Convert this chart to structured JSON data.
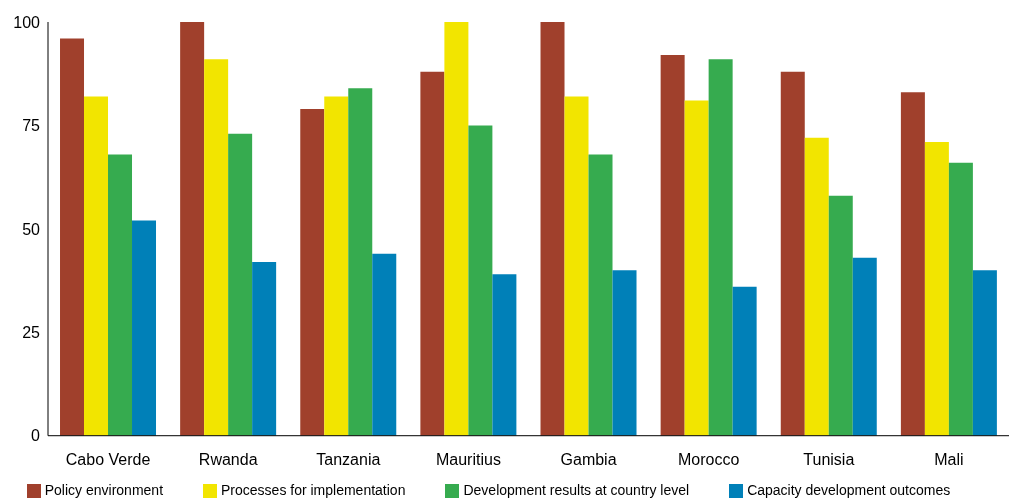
{
  "chart_data": {
    "type": "bar",
    "categories": [
      "Cabo Verde",
      "Rwanda",
      "Tanzania",
      "Mauritius",
      "Gambia",
      "Morocco",
      "Tunisia",
      "Mali"
    ],
    "series": [
      {
        "name": "Policy environment",
        "color": "#a0402c",
        "values": [
          96,
          100,
          79,
          88,
          100,
          92,
          88,
          83
        ]
      },
      {
        "name": "Processes for implementation",
        "color": "#f2e500",
        "values": [
          82,
          91,
          82,
          100,
          82,
          81,
          72,
          71
        ]
      },
      {
        "name": "Development results at country level",
        "color": "#36ab4f",
        "values": [
          68,
          73,
          84,
          75,
          68,
          91,
          58,
          66
        ]
      },
      {
        "name": "Capacity development outcomes",
        "color": "#0080b8",
        "values": [
          52,
          42,
          44,
          39,
          40,
          36,
          43,
          40
        ]
      }
    ],
    "ylim": [
      0,
      100
    ],
    "yticks": [
      0,
      25,
      50,
      75,
      100
    ],
    "grid": false,
    "legend": "bottom"
  }
}
